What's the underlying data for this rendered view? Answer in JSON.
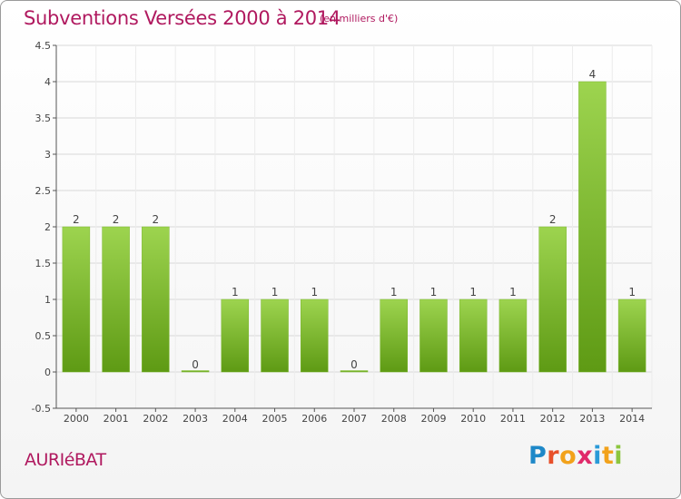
{
  "header": {
    "title": "Subventions Versées 2000 à 2014",
    "subtitle": "(en milliers d'€)"
  },
  "footer": {
    "commune": "AURIéBAT",
    "logo_letters": [
      "P",
      "r",
      "o",
      "x",
      "i",
      "t",
      "i"
    ],
    "logo_colors": [
      "#1e88c8",
      "#e8502a",
      "#f2a21b",
      "#e02a6a",
      "#2a9ad8",
      "#f2a21b",
      "#8cc63f"
    ]
  },
  "chart_data": {
    "type": "bar",
    "categories": [
      "2000",
      "2001",
      "2002",
      "2003",
      "2004",
      "2005",
      "2006",
      "2007",
      "2008",
      "2009",
      "2010",
      "2011",
      "2012",
      "2013",
      "2014"
    ],
    "values": [
      2,
      2,
      2,
      0,
      1,
      1,
      1,
      0,
      1,
      1,
      1,
      1,
      2,
      4,
      1
    ],
    "data_labels": [
      "2",
      "2",
      "2",
      "0",
      "1",
      "1",
      "1",
      "0",
      "1",
      "1",
      "1",
      "1",
      "2",
      "4",
      "1"
    ],
    "ylim": [
      -0.5,
      4.5
    ],
    "yticks": [
      -0.5,
      0,
      0.5,
      1,
      1.5,
      2,
      2.5,
      3,
      3.5,
      4,
      4.5
    ],
    "ytick_labels": [
      "-0.5",
      "0",
      "0.5",
      "1",
      "1.5",
      "2",
      "2.5",
      "3",
      "3.5",
      "4",
      "4.5"
    ],
    "grid": "horizontal",
    "colors": {
      "bar": "#8cc63f",
      "bar_dark": "#5e9a14",
      "grid": "#d8d8d8",
      "text": "#444444"
    }
  }
}
